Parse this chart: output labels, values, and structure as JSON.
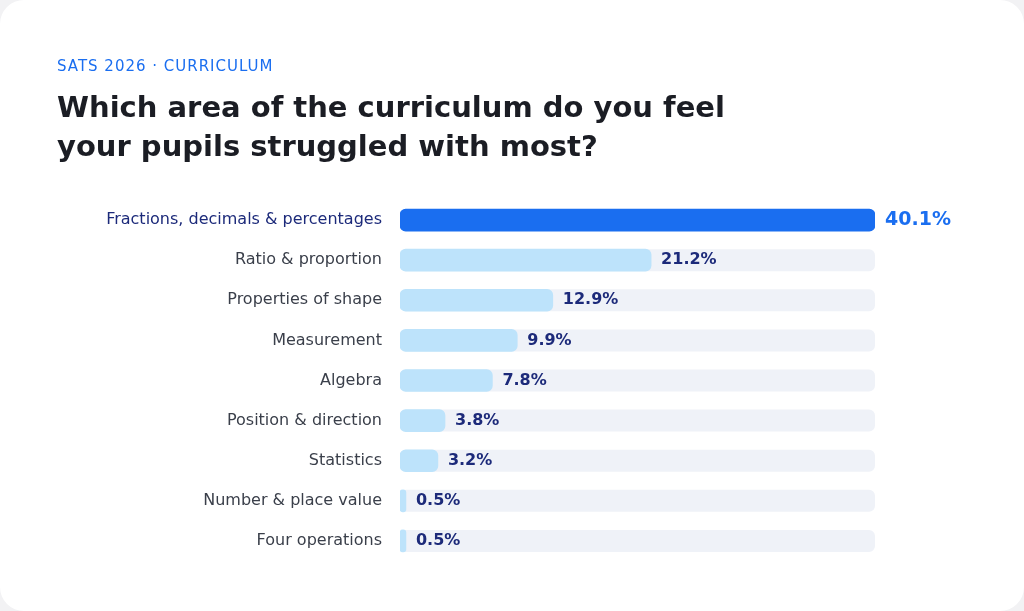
{
  "chart_data": {
    "type": "bar",
    "orientation": "horizontal",
    "subtitle": "SATS 2026 · CURRICULUM",
    "title": "Which area of the curriculum do you feel your pupils struggled with most?",
    "categories": [
      "Fractions, decimals & percentages",
      "Ratio & proportion",
      "Properties of shape",
      "Measurement",
      "Algebra",
      "Position & direction",
      "Statistics",
      "Number & place value",
      "Four operations"
    ],
    "values": [
      40.1,
      21.2,
      12.9,
      9.9,
      7.8,
      3.8,
      3.2,
      0.5,
      0.5
    ],
    "colors": [
      "#1a6ef0",
      "#bde3fb",
      "#bde3fb",
      "#bde3fb",
      "#bde3fb",
      "#bde3fb",
      "#bde3fb",
      "#bde3fb",
      "#bde3fb"
    ],
    "value_labels": [
      "40.1%",
      "21.2%",
      "12.9%",
      "9.9%",
      "7.8%",
      "3.8%",
      "3.2%",
      "0.5%",
      "0.5%"
    ],
    "tick_labels": "y",
    "grid": false,
    "legend": false
  }
}
